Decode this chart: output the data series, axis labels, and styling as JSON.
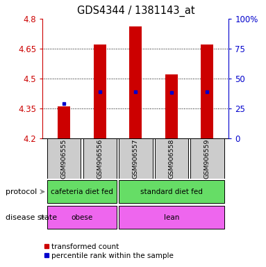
{
  "title": "GDS4344 / 1381143_at",
  "samples": [
    "GSM906555",
    "GSM906556",
    "GSM906557",
    "GSM906558",
    "GSM906559"
  ],
  "bar_bottom": 4.2,
  "bar_tops": [
    4.36,
    4.67,
    4.76,
    4.52,
    4.67
  ],
  "percentile_values": [
    4.375,
    4.435,
    4.435,
    4.43,
    4.435
  ],
  "ylim": [
    4.2,
    4.8
  ],
  "yticks": [
    4.2,
    4.35,
    4.5,
    4.65,
    4.8
  ],
  "ytick_labels": [
    "4.2",
    "4.35",
    "4.5",
    "4.65",
    "4.8"
  ],
  "y2ticks": [
    0,
    25,
    50,
    75,
    100
  ],
  "y2tick_labels": [
    "0",
    "25",
    "50",
    "75",
    "100%"
  ],
  "bar_color": "#cc0000",
  "percentile_color": "#0000cc",
  "protocol_labels": [
    "cafeteria diet fed",
    "standard diet fed"
  ],
  "protocol_ranges": [
    [
      0,
      2
    ],
    [
      2,
      5
    ]
  ],
  "protocol_color": "#66dd66",
  "disease_labels": [
    "obese",
    "lean"
  ],
  "disease_ranges": [
    [
      0,
      2
    ],
    [
      2,
      5
    ]
  ],
  "disease_color": "#ee66ee",
  "label_area_color": "#cccccc",
  "bar_width": 0.35,
  "legend_red_label": "transformed count",
  "legend_blue_label": "percentile rank within the sample"
}
